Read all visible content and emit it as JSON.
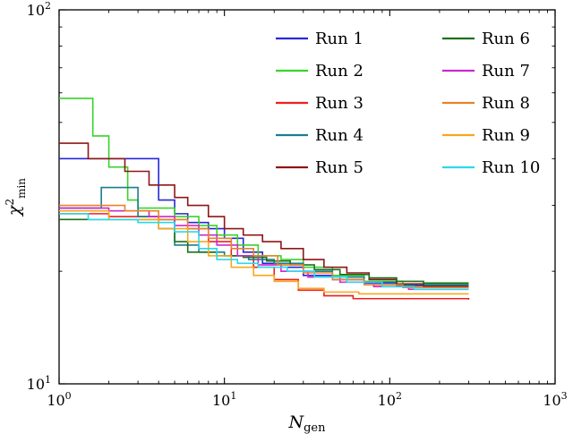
{
  "figure": {
    "background": "#ffffff",
    "text_color": "#000000",
    "axis_color": "#000000",
    "x_label": {
      "symbol": "N",
      "sub": "gen"
    },
    "y_label": {
      "symbol": "χ",
      "sup": "2",
      "sub": "min"
    },
    "x_tick_labels": [
      "10^0",
      "10^1",
      "10^2",
      "10^3"
    ],
    "y_tick_labels": [
      "10^1",
      "10^2"
    ]
  },
  "chart_data": {
    "type": "line",
    "title": "",
    "xlabel": "N_gen",
    "ylabel": "chi^2_min",
    "xscale": "log",
    "yscale": "log",
    "xlim": [
      1,
      1000
    ],
    "ylim": [
      10,
      100
    ],
    "grid": false,
    "step": "post",
    "legend_position": "upper right",
    "legend_columns": 2,
    "series": [
      {
        "name": "Run 1",
        "color": "#2727d8",
        "points": [
          [
            1,
            40
          ],
          [
            3.5,
            40
          ],
          [
            4,
            31
          ],
          [
            5,
            28.5
          ],
          [
            6,
            27
          ],
          [
            8,
            26
          ],
          [
            10,
            24.5
          ],
          [
            13,
            22.5
          ],
          [
            17,
            21
          ],
          [
            22,
            20.5
          ],
          [
            30,
            19.5
          ],
          [
            45,
            19
          ],
          [
            70,
            18.6
          ],
          [
            110,
            18.3
          ],
          [
            300,
            18.3
          ]
        ]
      },
      {
        "name": "Run 2",
        "color": "#37d42a",
        "points": [
          [
            1,
            58
          ],
          [
            1.6,
            46
          ],
          [
            2,
            38
          ],
          [
            2.6,
            31
          ],
          [
            3,
            29.5
          ],
          [
            5,
            28
          ],
          [
            7,
            26.5
          ],
          [
            9,
            25
          ],
          [
            12,
            23.5
          ],
          [
            16,
            22
          ],
          [
            22,
            21.5
          ],
          [
            30,
            20.5
          ],
          [
            45,
            19.5
          ],
          [
            70,
            18.8
          ],
          [
            120,
            18.5
          ],
          [
            300,
            18.5
          ]
        ]
      },
      {
        "name": "Run 3",
        "color": "#f01e1e",
        "points": [
          [
            1,
            28.5
          ],
          [
            2,
            28
          ],
          [
            4,
            27.5
          ],
          [
            6,
            26
          ],
          [
            8,
            24
          ],
          [
            11,
            22
          ],
          [
            15,
            20.5
          ],
          [
            20,
            19
          ],
          [
            28,
            17.8
          ],
          [
            40,
            17.2
          ],
          [
            60,
            16.9
          ],
          [
            300,
            16.8
          ]
        ]
      },
      {
        "name": "Run 4",
        "color": "#1a7f8e",
        "points": [
          [
            1,
            29.5
          ],
          [
            1.8,
            33.5
          ],
          [
            2.6,
            33.5
          ],
          [
            3,
            28
          ],
          [
            4,
            26
          ],
          [
            5,
            23.5
          ],
          [
            7,
            22.5
          ],
          [
            10,
            22
          ],
          [
            14,
            21.5
          ],
          [
            20,
            21
          ],
          [
            30,
            20
          ],
          [
            45,
            19.3
          ],
          [
            70,
            18.7
          ],
          [
            110,
            18.4
          ],
          [
            300,
            18.4
          ]
        ]
      },
      {
        "name": "Run 5",
        "color": "#8f1616",
        "points": [
          [
            1,
            44
          ],
          [
            1.5,
            40
          ],
          [
            2.5,
            37
          ],
          [
            3.5,
            34
          ],
          [
            5,
            31.5
          ],
          [
            6,
            30
          ],
          [
            8,
            28
          ],
          [
            10,
            26
          ],
          [
            13,
            25
          ],
          [
            17,
            24
          ],
          [
            22,
            23
          ],
          [
            30,
            21.5
          ],
          [
            40,
            20.5
          ],
          [
            55,
            19.8
          ],
          [
            75,
            19
          ],
          [
            110,
            18.5
          ],
          [
            160,
            18.2
          ],
          [
            300,
            18.2
          ]
        ]
      },
      {
        "name": "Run 6",
        "color": "#1c701c",
        "points": [
          [
            1,
            27.5
          ],
          [
            4,
            27.5
          ],
          [
            5,
            24
          ],
          [
            6,
            22.5
          ],
          [
            9,
            22
          ],
          [
            13,
            21.8
          ],
          [
            18,
            21.3
          ],
          [
            25,
            20.8
          ],
          [
            35,
            20.2
          ],
          [
            50,
            19.6
          ],
          [
            75,
            19.2
          ],
          [
            110,
            18.8
          ],
          [
            160,
            18.6
          ],
          [
            300,
            18.6
          ]
        ]
      },
      {
        "name": "Run 7",
        "color": "#cc29cc",
        "points": [
          [
            1,
            29.5
          ],
          [
            2,
            29
          ],
          [
            3.5,
            28
          ],
          [
            5,
            26.5
          ],
          [
            7,
            25
          ],
          [
            9,
            23.5
          ],
          [
            12,
            22
          ],
          [
            16,
            20.8
          ],
          [
            22,
            20
          ],
          [
            32,
            19.3
          ],
          [
            50,
            18.7
          ],
          [
            80,
            18.2
          ],
          [
            130,
            17.9
          ],
          [
            300,
            17.9
          ]
        ]
      },
      {
        "name": "Run 8",
        "color": "#e8822b",
        "points": [
          [
            1,
            30
          ],
          [
            2.5,
            29
          ],
          [
            4,
            27.5
          ],
          [
            6,
            26
          ],
          [
            8,
            24.5
          ],
          [
            11,
            23
          ],
          [
            15,
            22
          ],
          [
            21,
            20.8
          ],
          [
            30,
            19.8
          ],
          [
            45,
            19
          ],
          [
            70,
            18.4
          ],
          [
            120,
            18.1
          ],
          [
            300,
            18.1
          ]
        ]
      },
      {
        "name": "Run 9",
        "color": "#f7a81b",
        "points": [
          [
            1,
            29
          ],
          [
            2,
            27.5
          ],
          [
            4,
            26
          ],
          [
            6,
            24
          ],
          [
            8,
            22
          ],
          [
            11,
            20.5
          ],
          [
            15,
            19.5
          ],
          [
            20,
            18.8
          ],
          [
            28,
            18
          ],
          [
            40,
            17.6
          ],
          [
            65,
            17.4
          ],
          [
            300,
            17.4
          ]
        ]
      },
      {
        "name": "Run 10",
        "color": "#2bd8ea",
        "points": [
          [
            1,
            28.5
          ],
          [
            1.5,
            27.5
          ],
          [
            3,
            27
          ],
          [
            5,
            25.5
          ],
          [
            7,
            23
          ],
          [
            9,
            21.5
          ],
          [
            12,
            21
          ],
          [
            16,
            20.5
          ],
          [
            24,
            20
          ],
          [
            35,
            19.3
          ],
          [
            55,
            18.7
          ],
          [
            90,
            18.2
          ],
          [
            140,
            17.9
          ],
          [
            300,
            17.9
          ]
        ]
      }
    ]
  }
}
